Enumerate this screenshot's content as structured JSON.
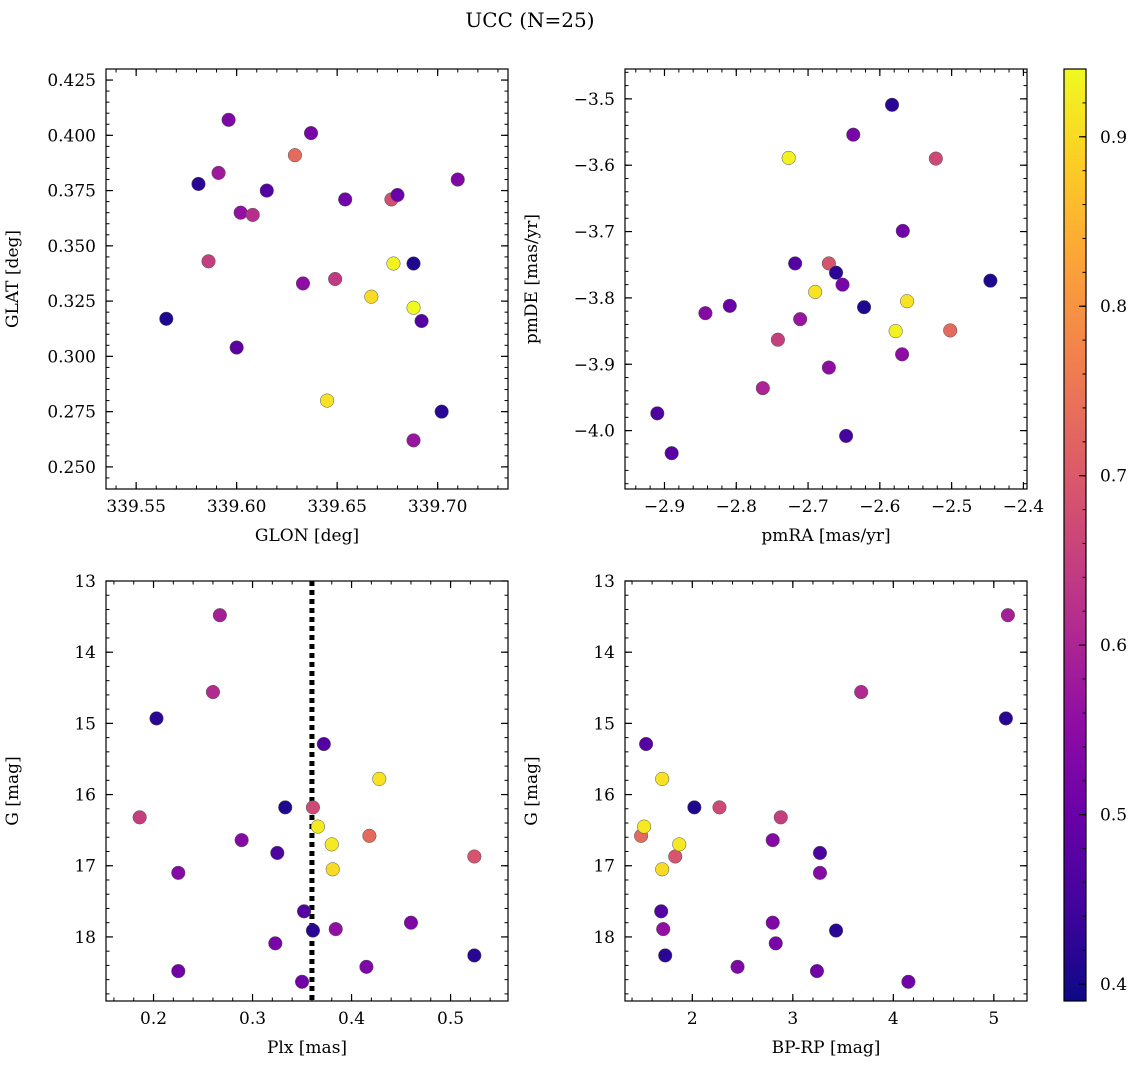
{
  "figure": {
    "suptitle": "UCC (N=25)"
  },
  "colors": {
    "colormap": "plasma",
    "marker_edge": "#555555",
    "plx_line": "#000000"
  },
  "colorbar": {
    "range": [
      0.39,
      0.94
    ],
    "ticks": [
      0.4,
      0.5,
      0.6,
      0.7,
      0.8,
      0.9
    ]
  },
  "chart_data": [
    {
      "type": "scatter",
      "title": "",
      "xlabel": "GLON [deg]",
      "ylabel": "GLAT [deg]",
      "xlim": [
        339.535,
        339.735
      ],
      "ylim": [
        0.24,
        0.43
      ],
      "xticks": [
        339.55,
        339.6,
        339.65,
        339.7
      ],
      "yticks": [
        0.25,
        0.275,
        0.3,
        0.325,
        0.35,
        0.375,
        0.4,
        0.425
      ],
      "x_decimals": 2,
      "y_decimals": 3,
      "y_inverted": false,
      "points": [
        {
          "x": 339.565,
          "y": 0.317,
          "c": 0.41
        },
        {
          "x": 339.581,
          "y": 0.378,
          "c": 0.42
        },
        {
          "x": 339.586,
          "y": 0.343,
          "c": 0.65
        },
        {
          "x": 339.591,
          "y": 0.383,
          "c": 0.58
        },
        {
          "x": 339.596,
          "y": 0.407,
          "c": 0.53
        },
        {
          "x": 339.6,
          "y": 0.304,
          "c": 0.48
        },
        {
          "x": 339.602,
          "y": 0.365,
          "c": 0.56
        },
        {
          "x": 339.608,
          "y": 0.364,
          "c": 0.62
        },
        {
          "x": 339.615,
          "y": 0.375,
          "c": 0.47
        },
        {
          "x": 339.629,
          "y": 0.391,
          "c": 0.73
        },
        {
          "x": 339.633,
          "y": 0.333,
          "c": 0.55
        },
        {
          "x": 339.637,
          "y": 0.401,
          "c": 0.52
        },
        {
          "x": 339.645,
          "y": 0.28,
          "c": 0.91
        },
        {
          "x": 339.649,
          "y": 0.335,
          "c": 0.64
        },
        {
          "x": 339.654,
          "y": 0.371,
          "c": 0.51
        },
        {
          "x": 339.667,
          "y": 0.327,
          "c": 0.9
        },
        {
          "x": 339.677,
          "y": 0.371,
          "c": 0.68
        },
        {
          "x": 339.678,
          "y": 0.342,
          "c": 0.93
        },
        {
          "x": 339.68,
          "y": 0.373,
          "c": 0.5
        },
        {
          "x": 339.688,
          "y": 0.342,
          "c": 0.41
        },
        {
          "x": 339.688,
          "y": 0.322,
          "c": 0.94
        },
        {
          "x": 339.688,
          "y": 0.262,
          "c": 0.57
        },
        {
          "x": 339.692,
          "y": 0.316,
          "c": 0.47
        },
        {
          "x": 339.702,
          "y": 0.275,
          "c": 0.42
        },
        {
          "x": 339.71,
          "y": 0.38,
          "c": 0.53
        }
      ]
    },
    {
      "type": "scatter",
      "title": "",
      "xlabel": "pmRA [mas/yr]",
      "ylabel": "pmDE [mas/yr]",
      "xlim": [
        -2.955,
        -2.395
      ],
      "ylim": [
        -4.088,
        -3.455
      ],
      "xticks": [
        -2.9,
        -2.8,
        -2.7,
        -2.6,
        -2.5,
        -2.4
      ],
      "yticks": [
        -4.0,
        -3.9,
        -3.8,
        -3.7,
        -3.6,
        -3.5
      ],
      "x_decimals": 1,
      "y_decimals": 1,
      "y_inverted": false,
      "points": [
        {
          "x": -2.91,
          "y": -3.974,
          "c": 0.46
        },
        {
          "x": -2.89,
          "y": -4.034,
          "c": 0.48
        },
        {
          "x": -2.843,
          "y": -3.823,
          "c": 0.54
        },
        {
          "x": -2.809,
          "y": -3.812,
          "c": 0.5
        },
        {
          "x": -2.742,
          "y": -3.863,
          "c": 0.65
        },
        {
          "x": -2.763,
          "y": -3.936,
          "c": 0.6
        },
        {
          "x": -2.727,
          "y": -3.589,
          "c": 0.93
        },
        {
          "x": -2.718,
          "y": -3.748,
          "c": 0.47
        },
        {
          "x": -2.711,
          "y": -3.832,
          "c": 0.57
        },
        {
          "x": -2.69,
          "y": -3.791,
          "c": 0.91
        },
        {
          "x": -2.671,
          "y": -3.748,
          "c": 0.69
        },
        {
          "x": -2.671,
          "y": -3.905,
          "c": 0.55
        },
        {
          "x": -2.661,
          "y": -3.762,
          "c": 0.42
        },
        {
          "x": -2.652,
          "y": -3.78,
          "c": 0.52
        },
        {
          "x": -2.647,
          "y": -4.008,
          "c": 0.45
        },
        {
          "x": -2.637,
          "y": -3.554,
          "c": 0.52
        },
        {
          "x": -2.622,
          "y": -3.814,
          "c": 0.41
        },
        {
          "x": -2.583,
          "y": -3.509,
          "c": 0.42
        },
        {
          "x": -2.578,
          "y": -3.85,
          "c": 0.93
        },
        {
          "x": -2.569,
          "y": -3.885,
          "c": 0.55
        },
        {
          "x": -2.568,
          "y": -3.699,
          "c": 0.51
        },
        {
          "x": -2.562,
          "y": -3.805,
          "c": 0.91
        },
        {
          "x": -2.522,
          "y": -3.59,
          "c": 0.67
        },
        {
          "x": -2.502,
          "y": -3.849,
          "c": 0.73
        },
        {
          "x": -2.446,
          "y": -3.774,
          "c": 0.41
        }
      ]
    },
    {
      "type": "scatter",
      "title": "",
      "xlabel": "Plx [mas]",
      "ylabel": "G [mag]",
      "xlim": [
        0.152,
        0.558
      ],
      "ylim": [
        13.0,
        18.9
      ],
      "xticks": [
        0.2,
        0.3,
        0.4,
        0.5
      ],
      "yticks": [
        13,
        14,
        15,
        16,
        17,
        18
      ],
      "x_decimals": 1,
      "y_decimals": 0,
      "y_inverted": true,
      "vline": 0.36,
      "points": [
        {
          "x": 0.186,
          "y": 16.32,
          "c": 0.65
        },
        {
          "x": 0.203,
          "y": 14.93,
          "c": 0.42
        },
        {
          "x": 0.225,
          "y": 17.1,
          "c": 0.54
        },
        {
          "x": 0.225,
          "y": 18.48,
          "c": 0.51
        },
        {
          "x": 0.26,
          "y": 14.56,
          "c": 0.61
        },
        {
          "x": 0.267,
          "y": 13.48,
          "c": 0.59
        },
        {
          "x": 0.289,
          "y": 16.64,
          "c": 0.54
        },
        {
          "x": 0.323,
          "y": 18.09,
          "c": 0.52
        },
        {
          "x": 0.325,
          "y": 16.82,
          "c": 0.46
        },
        {
          "x": 0.333,
          "y": 16.18,
          "c": 0.41
        },
        {
          "x": 0.35,
          "y": 18.63,
          "c": 0.51
        },
        {
          "x": 0.352,
          "y": 17.64,
          "c": 0.47
        },
        {
          "x": 0.361,
          "y": 17.91,
          "c": 0.42
        },
        {
          "x": 0.361,
          "y": 16.18,
          "c": 0.67
        },
        {
          "x": 0.366,
          "y": 16.45,
          "c": 0.92
        },
        {
          "x": 0.372,
          "y": 15.29,
          "c": 0.47
        },
        {
          "x": 0.38,
          "y": 16.7,
          "c": 0.92
        },
        {
          "x": 0.381,
          "y": 17.05,
          "c": 0.9
        },
        {
          "x": 0.384,
          "y": 17.89,
          "c": 0.56
        },
        {
          "x": 0.415,
          "y": 18.42,
          "c": 0.53
        },
        {
          "x": 0.418,
          "y": 16.58,
          "c": 0.73
        },
        {
          "x": 0.428,
          "y": 15.78,
          "c": 0.91
        },
        {
          "x": 0.46,
          "y": 17.8,
          "c": 0.53
        },
        {
          "x": 0.524,
          "y": 18.26,
          "c": 0.42
        },
        {
          "x": 0.524,
          "y": 16.87,
          "c": 0.69
        }
      ]
    },
    {
      "type": "scatter",
      "title": "",
      "xlabel": "BP-RP [mag]",
      "ylabel": "G [mag]",
      "xlim": [
        1.33,
        5.33
      ],
      "ylim": [
        13.0,
        18.9
      ],
      "xticks": [
        2,
        3,
        4,
        5
      ],
      "yticks": [
        13,
        14,
        15,
        16,
        17,
        18
      ],
      "x_decimals": 0,
      "y_decimals": 0,
      "y_inverted": true,
      "points": [
        {
          "x": 1.49,
          "y": 16.58,
          "c": 0.73
        },
        {
          "x": 1.52,
          "y": 16.45,
          "c": 0.92
        },
        {
          "x": 1.54,
          "y": 15.29,
          "c": 0.47
        },
        {
          "x": 1.69,
          "y": 17.64,
          "c": 0.47
        },
        {
          "x": 1.7,
          "y": 15.78,
          "c": 0.91
        },
        {
          "x": 1.7,
          "y": 17.05,
          "c": 0.9
        },
        {
          "x": 1.71,
          "y": 17.89,
          "c": 0.56
        },
        {
          "x": 1.73,
          "y": 18.26,
          "c": 0.42
        },
        {
          "x": 1.83,
          "y": 16.87,
          "c": 0.69
        },
        {
          "x": 1.87,
          "y": 16.7,
          "c": 0.92
        },
        {
          "x": 2.02,
          "y": 16.18,
          "c": 0.41
        },
        {
          "x": 2.27,
          "y": 16.18,
          "c": 0.67
        },
        {
          "x": 2.45,
          "y": 18.42,
          "c": 0.53
        },
        {
          "x": 2.8,
          "y": 16.64,
          "c": 0.54
        },
        {
          "x": 2.8,
          "y": 17.8,
          "c": 0.53
        },
        {
          "x": 2.83,
          "y": 18.09,
          "c": 0.52
        },
        {
          "x": 2.88,
          "y": 16.32,
          "c": 0.65
        },
        {
          "x": 3.24,
          "y": 18.48,
          "c": 0.51
        },
        {
          "x": 3.27,
          "y": 16.82,
          "c": 0.46
        },
        {
          "x": 3.27,
          "y": 17.1,
          "c": 0.54
        },
        {
          "x": 3.43,
          "y": 17.91,
          "c": 0.42
        },
        {
          "x": 3.68,
          "y": 14.56,
          "c": 0.61
        },
        {
          "x": 4.15,
          "y": 18.63,
          "c": 0.51
        },
        {
          "x": 5.12,
          "y": 14.93,
          "c": 0.42
        },
        {
          "x": 5.14,
          "y": 13.48,
          "c": 0.59
        }
      ]
    }
  ]
}
